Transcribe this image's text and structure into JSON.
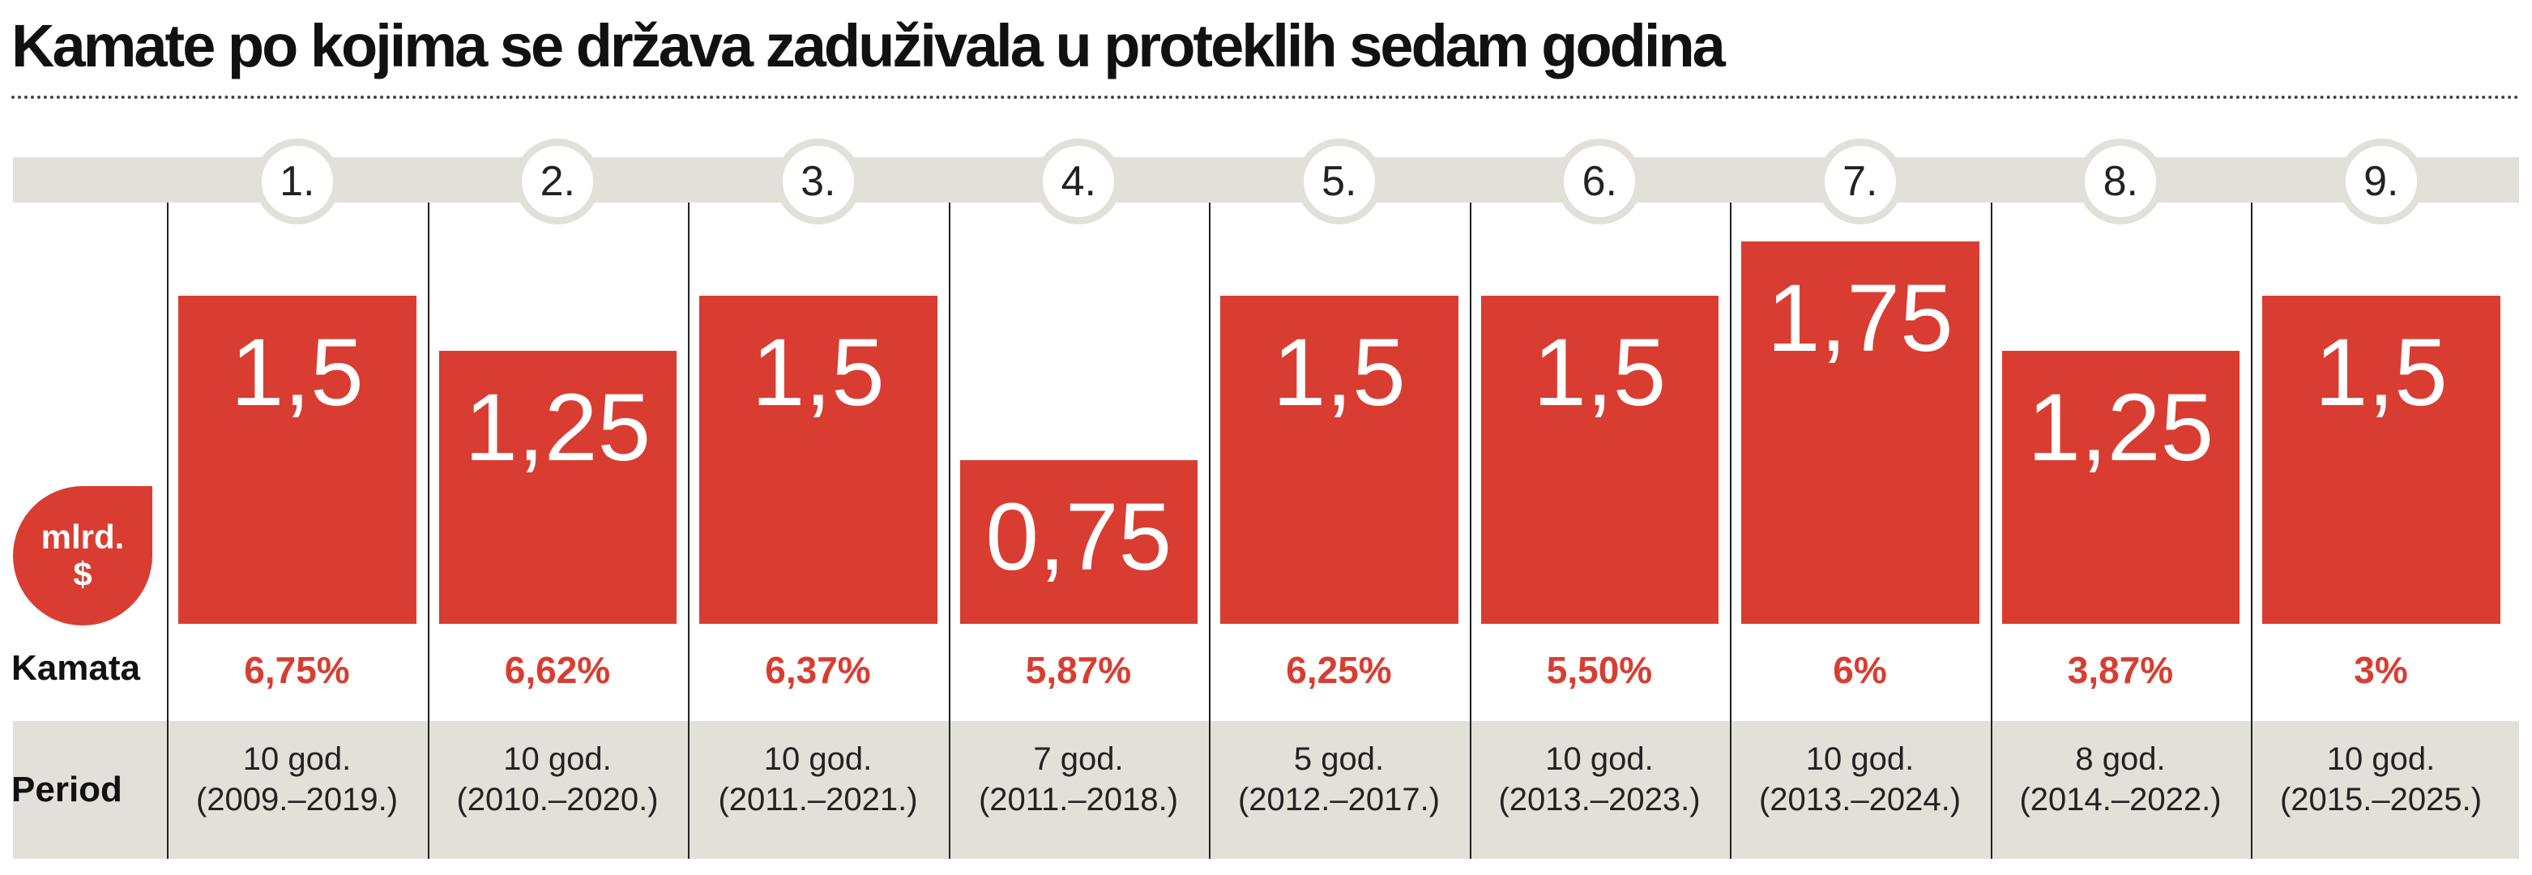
{
  "title": "Kamate po kojima se država zaduživala u proteklih sedam godina",
  "unit_badge": {
    "line1": "mlrd.",
    "line2": "$"
  },
  "row_labels": {
    "rate": "Kamata",
    "period": "Period"
  },
  "colors": {
    "bar": "#d93d31",
    "band": "#e3e0d9"
  },
  "chart_data": {
    "type": "bar",
    "title": "Kamate po kojima se država zaduživala u proteklih sedam godina",
    "ylabel": "mlrd. $",
    "categories": [
      "1.",
      "2.",
      "3.",
      "4.",
      "5.",
      "6.",
      "7.",
      "8.",
      "9."
    ],
    "values": [
      1.5,
      1.25,
      1.5,
      0.75,
      1.5,
      1.5,
      1.75,
      1.25,
      1.5
    ],
    "value_labels": [
      "1,5",
      "1,25",
      "1,5",
      "0,75",
      "1,5",
      "1,5",
      "1,75",
      "1,25",
      "1,5"
    ],
    "rates": [
      "6,75%",
      "6,62%",
      "6,37%",
      "5,87%",
      "6,25%",
      "5,50%",
      "6%",
      "3,87%",
      "3%"
    ],
    "periods": [
      [
        "10 god.",
        "(2009.–2019.)"
      ],
      [
        "10 god.",
        "(2010.–2020.)"
      ],
      [
        "10 god.",
        "(2011.–2021.)"
      ],
      [
        "7 god.",
        "(2011.–2018.)"
      ],
      [
        "5 god.",
        "(2012.–2017.)"
      ],
      [
        "10 god.",
        "(2013.–2023.)"
      ],
      [
        "10 god.",
        "(2013.–2024.)"
      ],
      [
        "8 god.",
        "(2014.–2022.)"
      ],
      [
        "10 god.",
        "(2015.–2025.)"
      ]
    ],
    "ylim": [
      0,
      2
    ],
    "grid": false
  }
}
